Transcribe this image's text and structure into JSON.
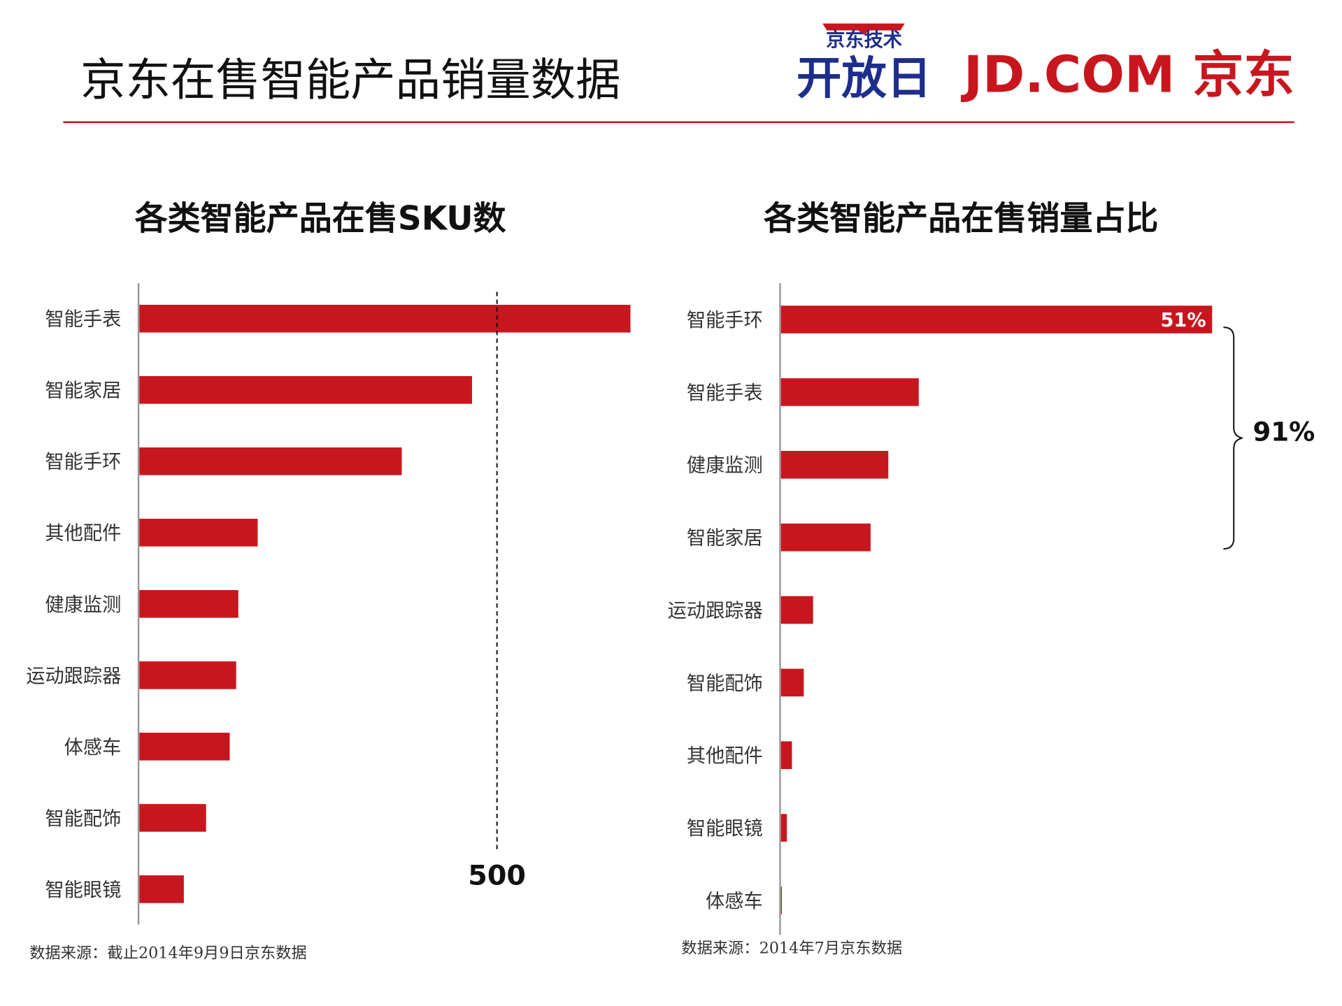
{
  "header": {
    "title": "京东在售智能产品销量数据",
    "logo_badge_text": "京东技术",
    "logo_main_text": "开放日",
    "brand_text": "JD.COM 京东",
    "accent_color": "#C8161E",
    "logo_blue": "#1E2E8C"
  },
  "chart_data": [
    {
      "type": "bar",
      "orientation": "horizontal",
      "title": "各类智能产品在售SKU数",
      "categories": [
        "智能手表",
        "智能家居",
        "智能手环",
        "其他配件",
        "健康监测",
        "运动跟踪器",
        "体感车",
        "智能配饰",
        "智能眼镜"
      ],
      "values": [
        685,
        464,
        366,
        165,
        138,
        135,
        126,
        93,
        62
      ],
      "reference_line": {
        "value": 500,
        "label": "500",
        "style": "dashed"
      },
      "xlim": [
        0,
        700
      ],
      "grid": false,
      "bar_color": "#C8161E",
      "source": "数据来源：截止2014年9月9日京东数据"
    },
    {
      "type": "bar",
      "orientation": "horizontal",
      "title": "各类智能产品在售销量占比",
      "categories": [
        "智能手环",
        "智能手表",
        "健康监测",
        "智能家居",
        "运动跟踪器",
        "智能配饰",
        "其他配件",
        "智能眼镜",
        "体感车"
      ],
      "values": [
        51,
        16.3,
        12.7,
        10.6,
        3.8,
        2.7,
        1.3,
        0.7,
        0.1
      ],
      "unit": "%",
      "data_labels": [
        "51%",
        "",
        "",
        "",
        "",
        "",
        "",
        "",
        ""
      ],
      "annotation": {
        "label": "91%",
        "spans": [
          "智能手环",
          "智能手表",
          "健康监测",
          "智能家居"
        ]
      },
      "xlim": [
        0,
        55
      ],
      "grid": false,
      "bar_color": "#C8161E",
      "source": "数据来源：2014年7月京东数据"
    }
  ]
}
